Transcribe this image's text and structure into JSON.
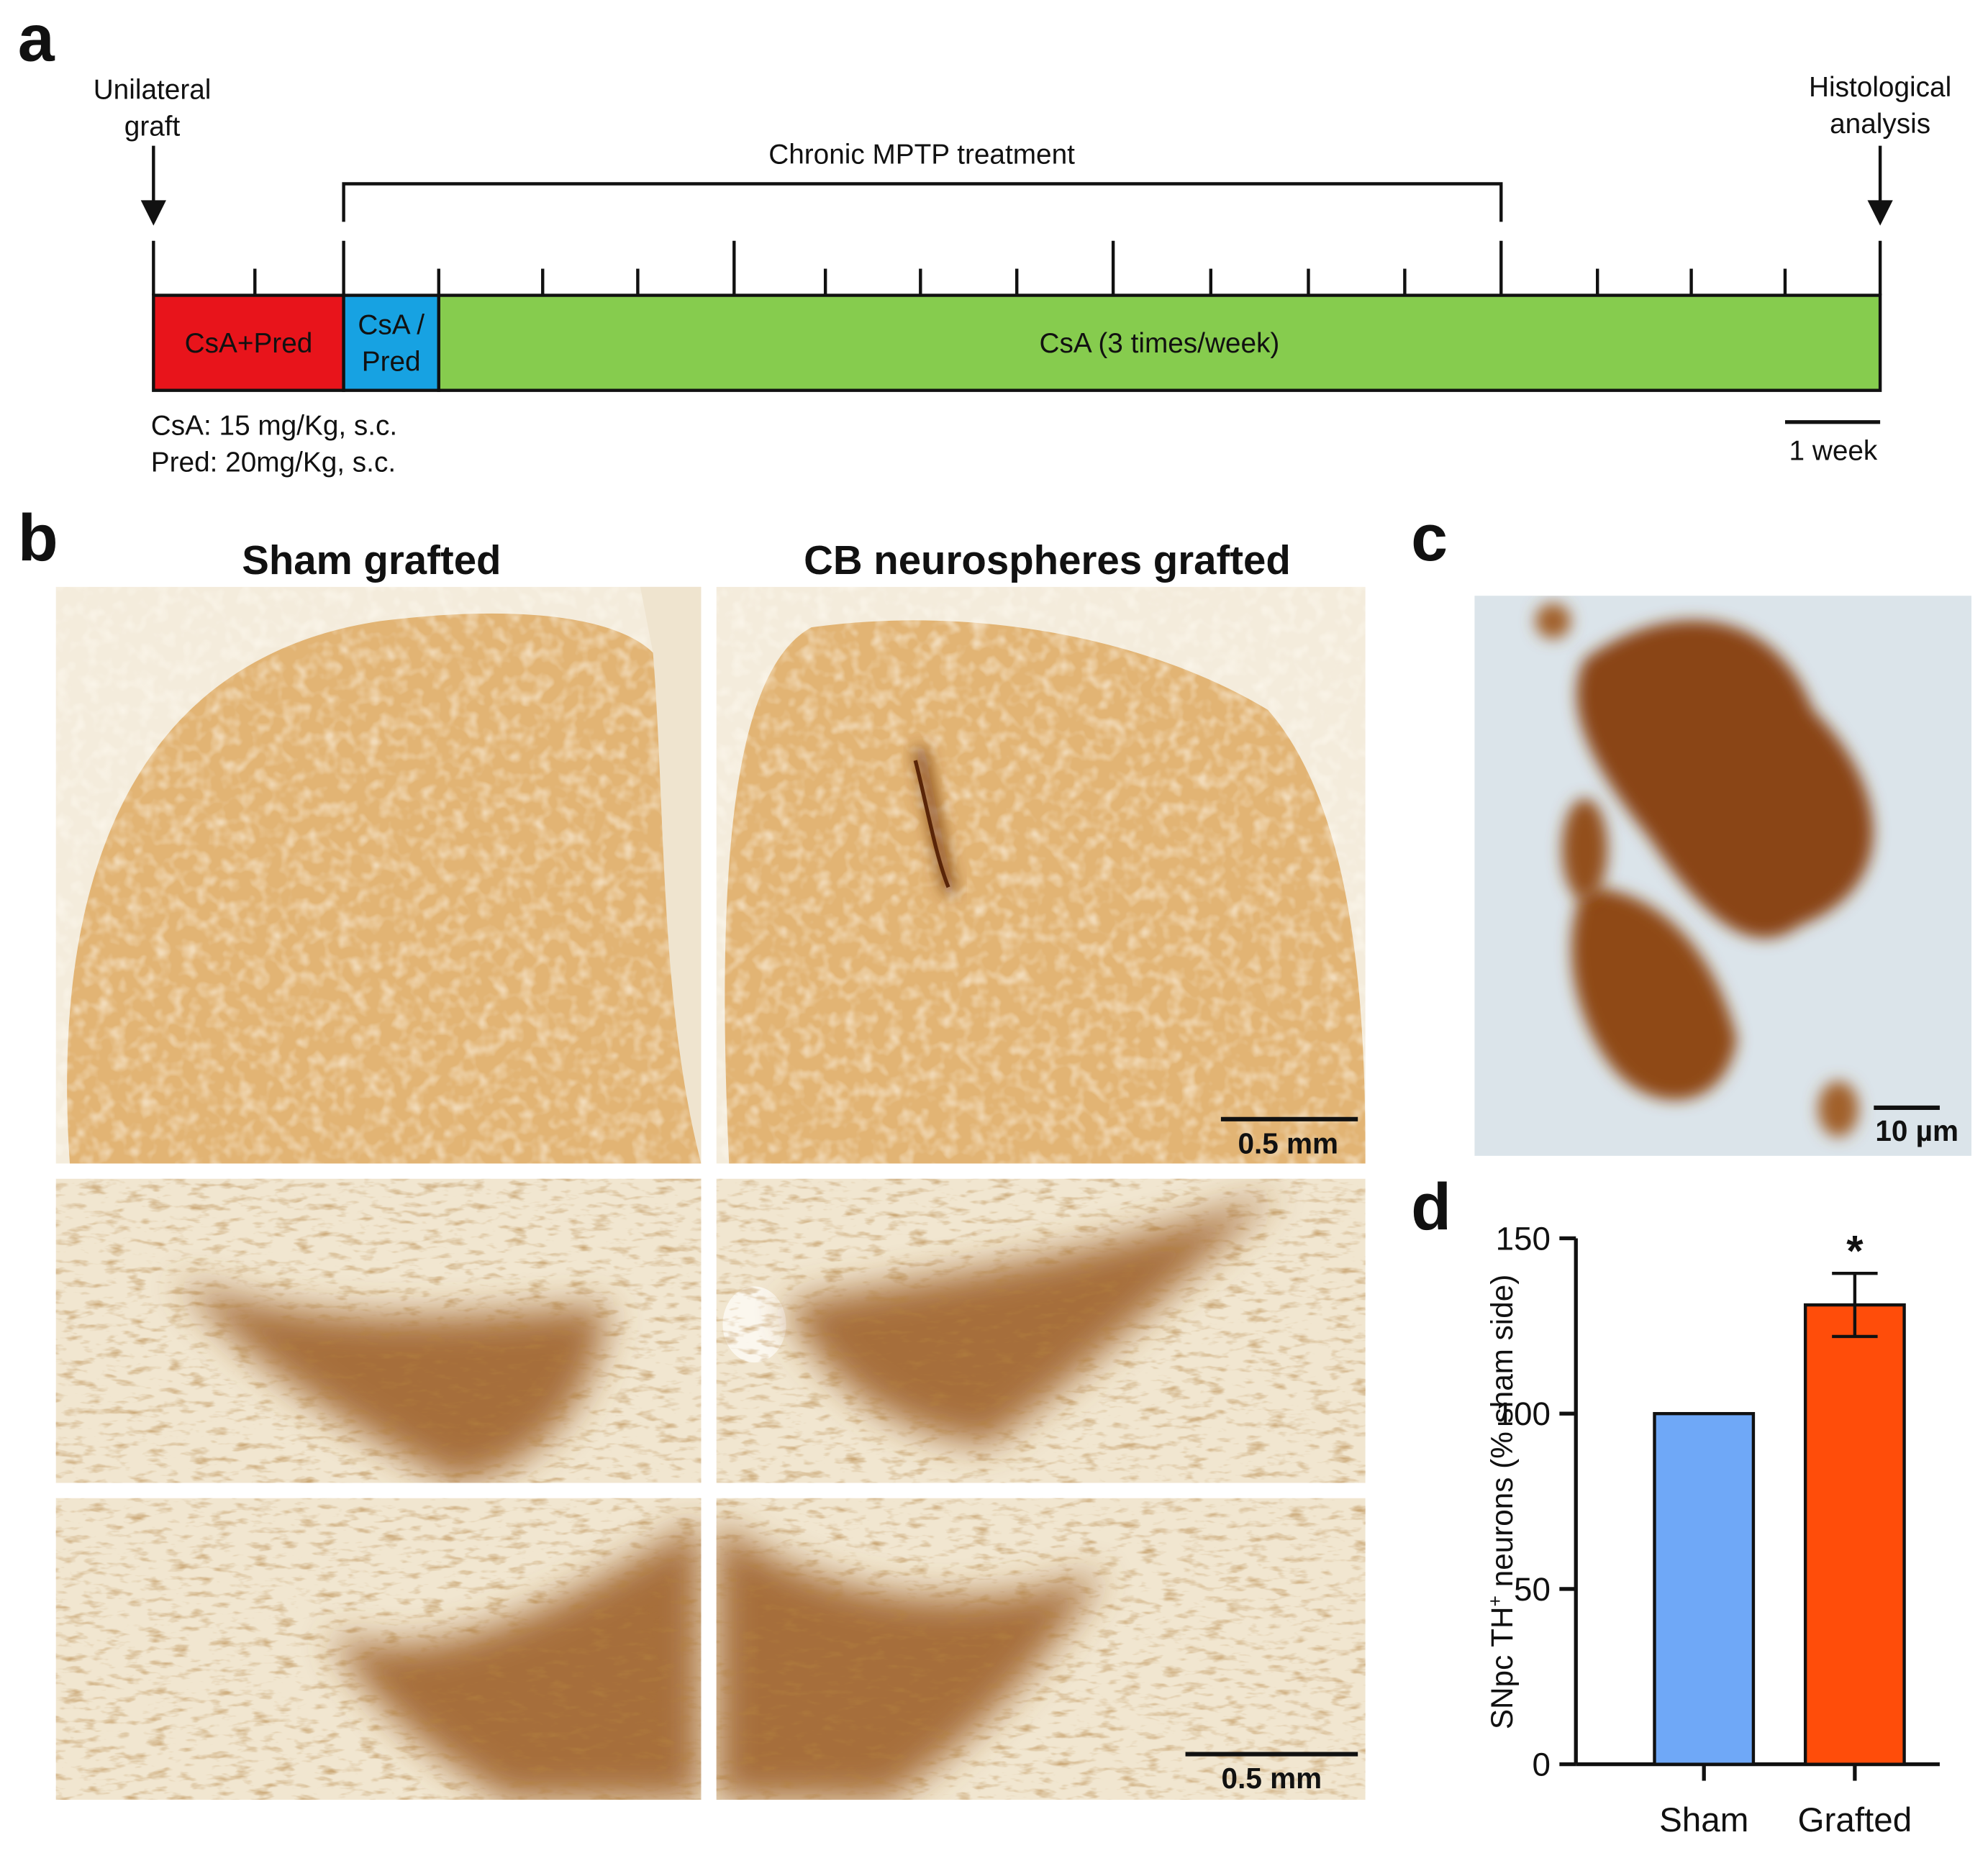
{
  "panel_labels": [
    "a",
    "b",
    "c",
    "d"
  ],
  "timeline": {
    "graft_label": [
      "Unilateral",
      "graft"
    ],
    "analysis_label": [
      "Histological",
      "analysis"
    ],
    "treatment_label": "Chronic MPTP treatment",
    "segments": [
      {
        "label": [
          "CsA+Pred"
        ],
        "color": "#e8141b"
      },
      {
        "label": [
          "CsA /",
          "Pred"
        ],
        "color": "#17a2e2"
      },
      {
        "label": [
          "CsA (3 times/week)"
        ],
        "color": "#86cc4e"
      }
    ],
    "doses": [
      "CsA: 15 mg/Kg, s.c.",
      "Pred: 20mg/Kg, s.c."
    ],
    "scale_label": "1 week"
  },
  "micrographs": {
    "columns": [
      "Sham grafted",
      "CB neurospheres grafted"
    ],
    "scale_labels": [
      "0.5 mm",
      "0.5 mm"
    ],
    "inset_scale_label": "10 µm"
  },
  "chart_data": {
    "type": "bar",
    "y_label": [
      "SNpc TH",
      "+",
      " neurons (% sham side)"
    ],
    "categories": [
      "Sham",
      "Grafted"
    ],
    "values": [
      100,
      131
    ],
    "errors": [
      0,
      9
    ],
    "colors": [
      "#6fa8f7",
      "#ff4d0a"
    ],
    "annotations": [
      {
        "category": 1,
        "text": "*"
      }
    ],
    "ylim": [
      0,
      150
    ],
    "yticks": [
      0,
      50,
      100,
      150
    ]
  }
}
